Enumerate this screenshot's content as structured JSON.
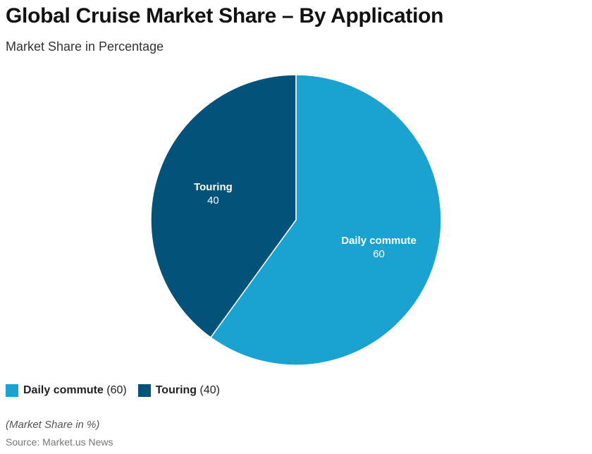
{
  "header": {
    "title": "Global Cruise Market Share – By Application",
    "subtitle": "Market Share in Percentage"
  },
  "chart_data": {
    "type": "pie",
    "title": "Global Cruise Market Share – By Application",
    "subtitle": "Market Share in Percentage",
    "slices": [
      {
        "name": "Daily commute",
        "value": 60,
        "value_label": "60",
        "legend_value": "(60)",
        "color": "#1aa3d1"
      },
      {
        "name": "Touring",
        "value": 40,
        "value_label": "40",
        "legend_value": "(40)",
        "color": "#03527a"
      }
    ],
    "legend_position": "bottom-left",
    "start_angle": "12 o'clock",
    "direction": "clockwise"
  },
  "footer": {
    "note": "(Market Share in %)",
    "source": "Source: Market.us News"
  }
}
